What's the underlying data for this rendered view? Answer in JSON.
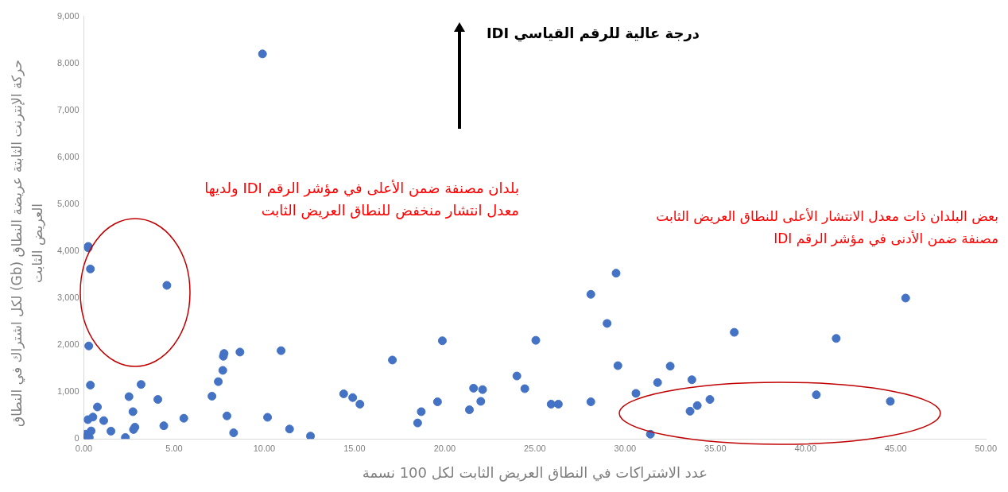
{
  "chart_data": {
    "type": "scatter",
    "xlabel": "عدد الاشتراكات في النطاق العريض الثابت لكل 100 نسمة",
    "ylabel": "حركة الإنترنت الثابتة عريضة النطاق (Gb) لكل اشتراك في النطاق العريض الثابت",
    "annotations": [
      "درجة عالية للرقم القياسي IDI",
      "بلدان مصنفة ضمن الأعلى في مؤشر الرقم IDI ولديها معدل انتشار منخفض للنطاق العريض الثابت",
      "بعض البلدان ذات معدل الانتشار الأعلى للنطاق العريض الثابت مصنفة ضمن الأدنى في مؤشر الرقم IDI"
    ],
    "x": [
      0.24,
      0.24,
      0.36,
      4.6,
      0.27,
      0.36,
      3.17,
      2.5,
      4.1,
      0.75,
      2.72,
      0.22,
      0.5,
      1.1,
      1.5,
      0.4,
      0.2,
      0.05,
      0.15,
      0.25,
      0.1,
      0.3,
      2.3,
      2.83,
      2.75,
      4.43,
      5.54,
      7.1,
      7.45,
      7.7,
      7.73,
      7.77,
      8.65,
      7.93,
      8.3,
      10.18,
      10.93,
      11.4,
      12.56,
      14.4,
      14.9,
      15.3,
      17.1,
      18.5,
      18.7,
      19.6,
      19.87,
      21.37,
      21.6,
      22.1,
      22.0,
      24.0,
      24.44,
      25.05,
      25.9,
      26.3,
      28.1,
      29.0,
      29.6,
      30.6,
      31.8,
      31.4,
      28.1,
      29.5,
      32.5,
      33.7,
      33.6,
      34.0,
      34.7,
      36.05,
      40.6,
      41.7,
      44.7,
      45.55,
      9.9
    ],
    "values": [
      4100,
      4070,
      3620,
      3270,
      1980,
      1145,
      1160,
      900,
      840,
      680,
      580,
      410,
      465,
      390,
      165,
      170,
      50,
      20,
      60,
      10,
      100,
      30,
      30,
      250,
      200,
      280,
      440,
      910,
      1220,
      1460,
      1760,
      1820,
      1850,
      490,
      130,
      460,
      1880,
      210,
      60,
      960,
      880,
      740,
      1680,
      340,
      580,
      790,
      2090,
      620,
      1080,
      1050,
      800,
      1340,
      1070,
      2100,
      740,
      740,
      790,
      2460,
      1560,
      970,
      1200,
      100,
      3080,
      3530,
      1550,
      1260,
      590,
      710,
      840,
      2270,
      940,
      2140,
      800,
      3000,
      8200
    ],
    "color": "#4472c4",
    "marker": "circle",
    "grid": false,
    "xlim": [
      0,
      50
    ],
    "xticks": [
      {
        "value": 0,
        "label": "0.00"
      },
      {
        "value": 5,
        "label": "5.00"
      },
      {
        "value": 10,
        "label": "10.00"
      },
      {
        "value": 15,
        "label": "15.00"
      },
      {
        "value": 20,
        "label": "20.00"
      },
      {
        "value": 25,
        "label": "25.00"
      },
      {
        "value": 30,
        "label": "30.00"
      },
      {
        "value": 35,
        "label": "35.00"
      },
      {
        "value": 40,
        "label": "40.00"
      },
      {
        "value": 45,
        "label": "45.00"
      },
      {
        "value": 50,
        "label": "50.00"
      }
    ],
    "ylim": [
      0,
      9000
    ],
    "yticks": [
      0,
      {
        "value": 1000,
        "label": "1,000"
      },
      {
        "value": 2000,
        "label": "2,000"
      },
      {
        "value": 3000,
        "label": "3,000"
      },
      {
        "value": 4000,
        "label": "4,000"
      },
      {
        "value": 5000,
        "label": "5,000"
      },
      {
        "value": 6000,
        "label": "6,000"
      },
      {
        "value": 7000,
        "label": "7,000"
      },
      {
        "value": 8000,
        "label": "8,000"
      },
      {
        "value": 9000,
        "label": "9,000"
      }
    ]
  }
}
